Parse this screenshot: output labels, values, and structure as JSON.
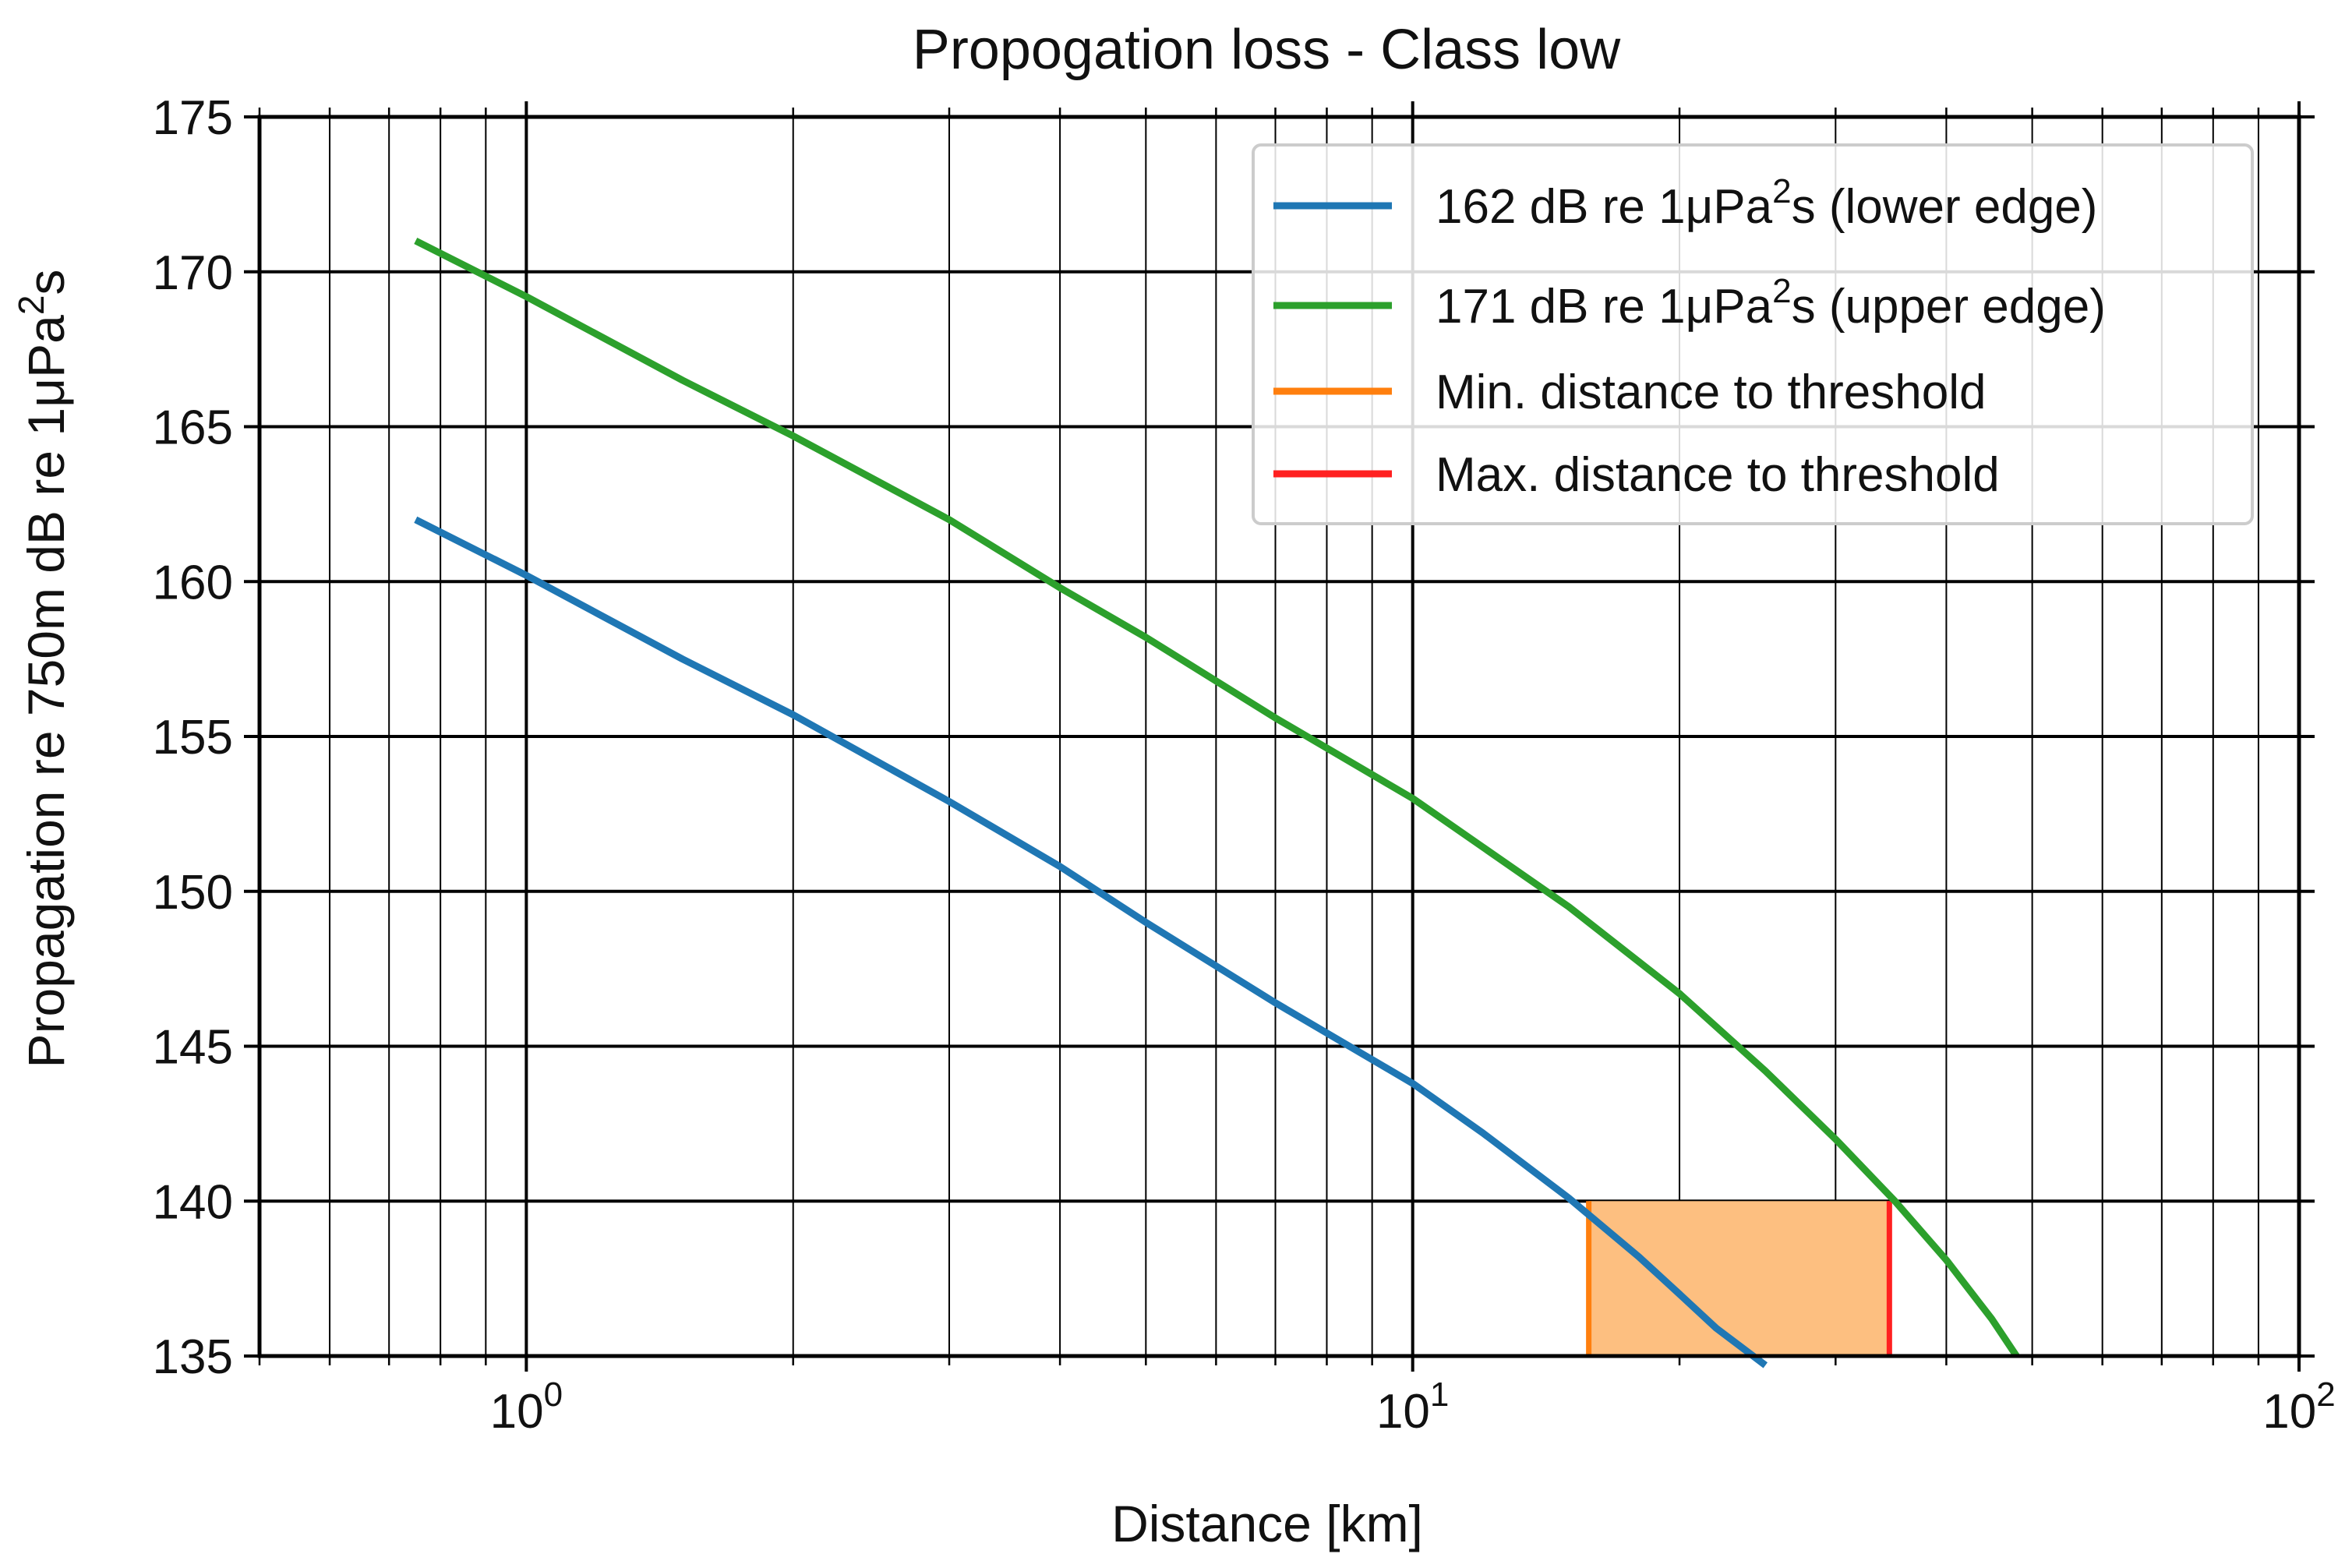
{
  "chart_data": {
    "type": "line",
    "title": "Propogation loss - Class low",
    "xlabel": "Distance [km]",
    "ylabel": {
      "base": "Propagation re 750m dB re 1μPa",
      "sup": "2",
      "tail": "s"
    },
    "x_scale": "log",
    "xlim": [
      0.5,
      100
    ],
    "ylim": [
      135,
      175
    ],
    "x_ticks": [
      {
        "value": 1,
        "base": "10",
        "exp": "0"
      },
      {
        "value": 10,
        "base": "10",
        "exp": "1"
      },
      {
        "value": 100,
        "base": "10",
        "exp": "2"
      }
    ],
    "y_ticks": [
      135,
      140,
      145,
      150,
      155,
      160,
      165,
      170,
      175
    ],
    "grid": true,
    "legend_position": "top-right",
    "series": [
      {
        "name": "162 dB re 1μPa²s (lower edge)",
        "legend": {
          "pre": "162 dB re 1μPa",
          "sup": "2",
          "post": "s (lower edge)"
        },
        "color": "#1f77b4",
        "x": [
          0.75,
          1.0,
          1.5,
          2.0,
          3.0,
          4.0,
          5.0,
          7.0,
          10.0,
          12.0,
          15.0,
          18.0,
          20.0,
          22.0,
          25.0
        ],
        "y": [
          162.0,
          160.2,
          157.5,
          155.7,
          152.9,
          150.8,
          149.0,
          146.4,
          143.8,
          142.2,
          140.1,
          138.2,
          137.0,
          135.9,
          134.7
        ]
      },
      {
        "name": "171 dB re 1μPa²s (upper edge)",
        "legend": {
          "pre": "171 dB re 1μPa",
          "sup": "2",
          "post": "s (upper edge)"
        },
        "color": "#2ca02c",
        "x": [
          0.75,
          1.0,
          1.5,
          2.0,
          3.0,
          4.0,
          5.0,
          7.0,
          10.0,
          15.0,
          20.0,
          25.0,
          30.0,
          35.0,
          40.0,
          45.0,
          48.0
        ],
        "y": [
          171.0,
          169.2,
          166.5,
          164.7,
          162.0,
          159.8,
          158.2,
          155.6,
          153.0,
          149.5,
          146.7,
          144.2,
          142.0,
          140.0,
          138.1,
          136.2,
          135.0
        ]
      }
    ],
    "threshold": {
      "y": 140,
      "min_distance": 15.8,
      "max_distance": 34.5,
      "fill_color": "#fdbf80",
      "min_color": "#ff7f0e",
      "max_color": "#ff2020",
      "min_label": "Min. distance to threshold",
      "max_label": "Max. distance to threshold"
    }
  }
}
